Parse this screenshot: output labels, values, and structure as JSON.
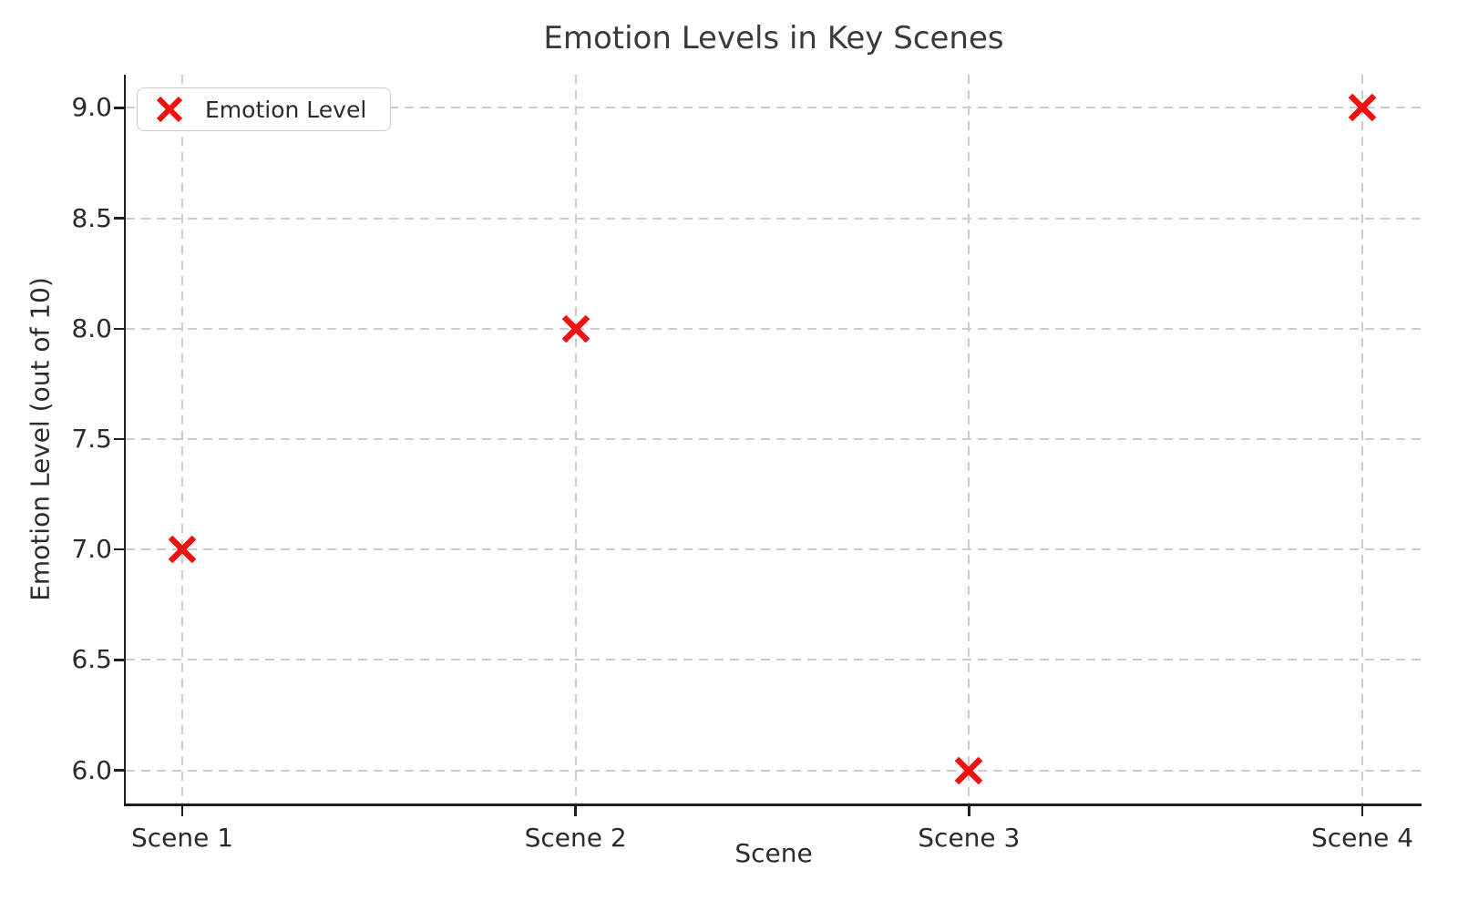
{
  "chart_data": {
    "type": "scatter",
    "title": "Emotion Levels in Key Scenes",
    "xlabel": "Scene",
    "ylabel": "Emotion Level (out of 10)",
    "categories": [
      "Scene 1",
      "Scene 2",
      "Scene 3",
      "Scene 4"
    ],
    "series": [
      {
        "name": "Emotion Level",
        "values": [
          7.0,
          8.0,
          6.0,
          9.0
        ]
      }
    ],
    "y_ticks": [
      6.0,
      6.5,
      7.0,
      7.5,
      8.0,
      8.5,
      9.0
    ],
    "y_tick_labels": [
      "6.0",
      "6.5",
      "7.0",
      "7.5",
      "8.0",
      "8.5",
      "9.0"
    ],
    "ylim": [
      5.85,
      9.15
    ],
    "grid": true,
    "grid_style": "dashed",
    "legend": {
      "position": "upper left",
      "entries": [
        "Emotion Level"
      ]
    },
    "marker": {
      "shape": "x",
      "color": "#ee1111",
      "size": 32,
      "stroke_width": 6.5
    }
  },
  "colors": {
    "marker": "#ee1111",
    "text": "#2b2b2b",
    "title": "#3a3a3a",
    "grid": "#cccccc",
    "spine": "#1f1f1f",
    "background": "#ffffff",
    "legend_border": "#cccccc"
  }
}
